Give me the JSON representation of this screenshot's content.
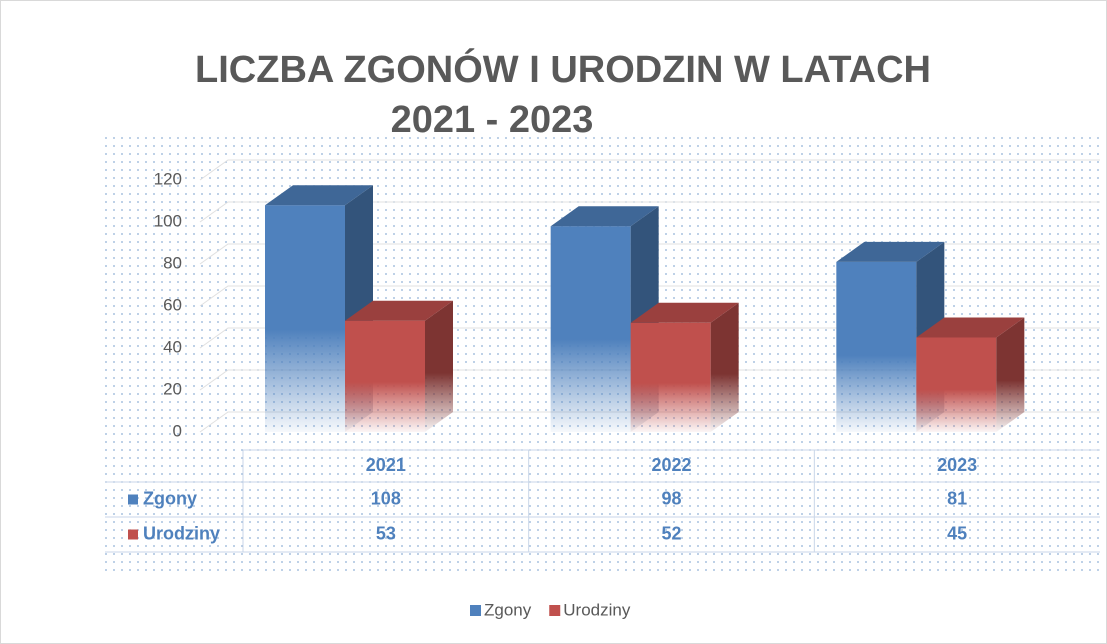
{
  "chart_data": {
    "type": "bar",
    "title": [
      "LICZBA ZGONÓW I URODZIN W LATACH",
      "2021 - 2023"
    ],
    "categories": [
      "2021",
      "2022",
      "2023"
    ],
    "series": [
      {
        "name": "Zgony",
        "color": "#4f81bd",
        "values": [
          108,
          98,
          81
        ]
      },
      {
        "name": "Urodziny",
        "color": "#c0504d",
        "values": [
          53,
          52,
          45
        ]
      }
    ],
    "ylim": [
      0,
      120
    ],
    "yticks": [
      0,
      20,
      40,
      60,
      80,
      100,
      120
    ],
    "grid": true,
    "legend": "bottom"
  }
}
